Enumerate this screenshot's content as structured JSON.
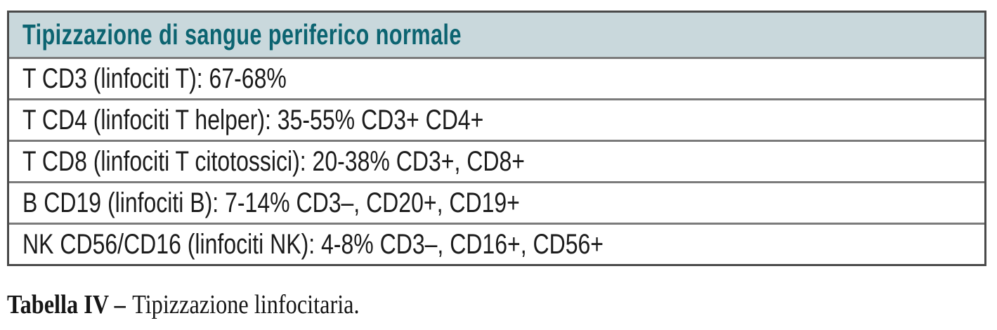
{
  "table": {
    "header": "Tipizzazione di sangue periferico normale",
    "rows": [
      "T CD3 (linfociti T): 67-68%",
      "T CD4 (linfociti T helper): 35-55% CD3+ CD4+",
      "T CD8 (linfociti T citotossici): 20-38% CD3+, CD8+",
      "B CD19 (linfociti B): 7-14% CD3–, CD20+, CD19+",
      "NK CD56/CD16 (linfociti NK): 4-8% CD3–, CD16+, CD56+"
    ]
  },
  "caption": {
    "label": "Tabella IV –",
    "text": "Tipizzazione linfocitaria."
  },
  "colors": {
    "header_bg": "#c9d8dc",
    "header_text": "#0c6471",
    "outer_border": "#4a4a4a",
    "row_divider": "#7b7b7b",
    "row_text": "#1c1c1c",
    "caption_text": "#161616"
  }
}
